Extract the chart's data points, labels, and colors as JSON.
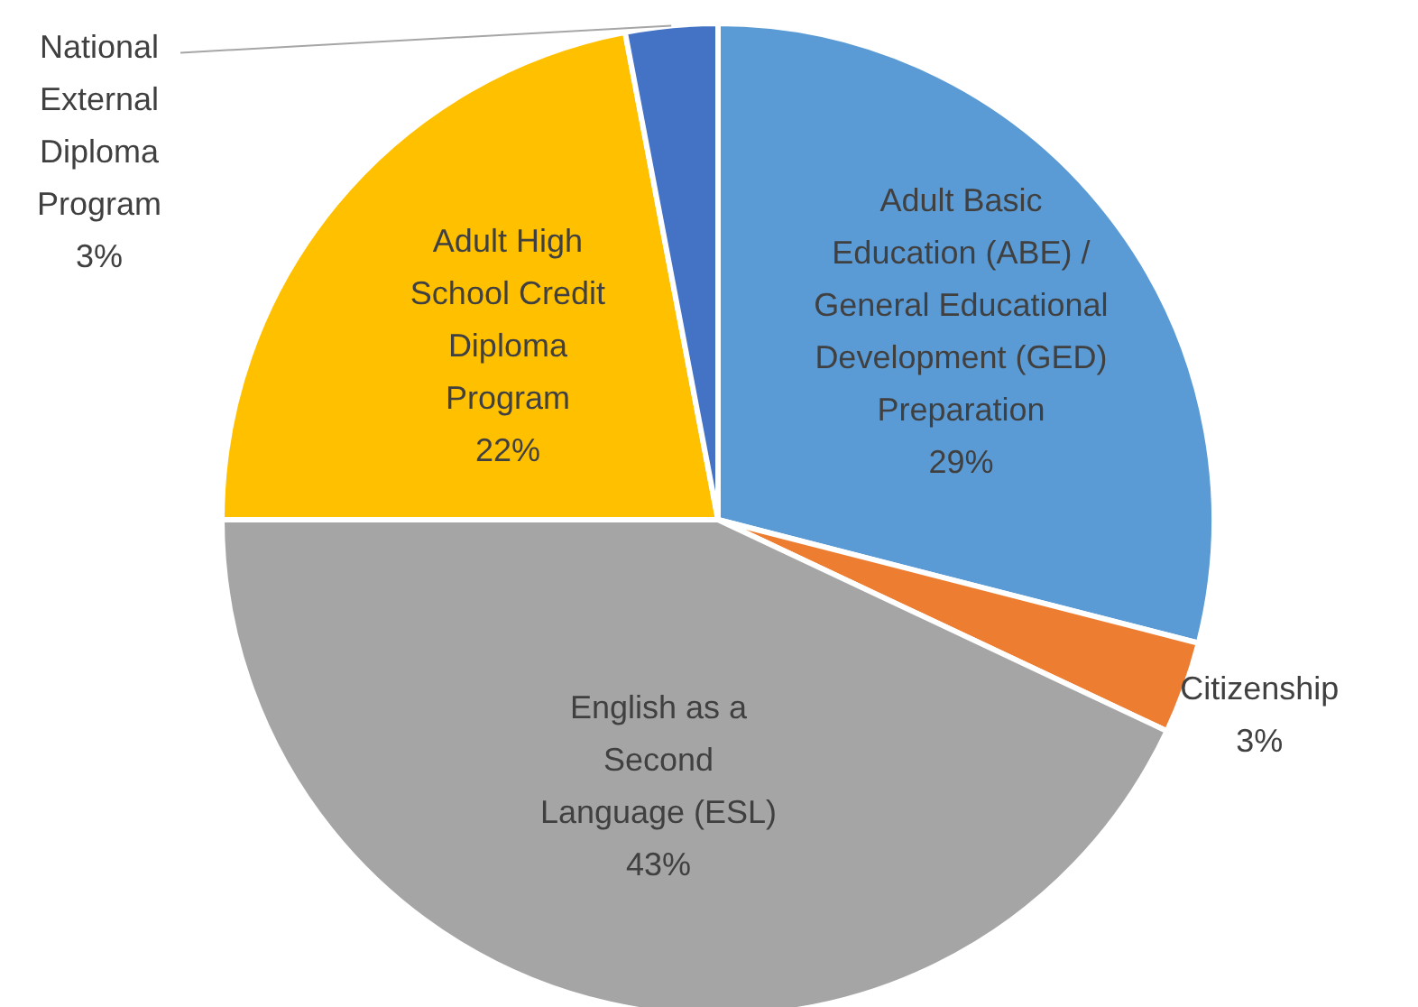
{
  "chart_data": {
    "type": "pie",
    "categories": [
      "Adult Basic Education (ABE) / General Educational Development (GED) Preparation",
      "Citizenship",
      "English as a Second Language (ESL)",
      "Adult High School Credit Diploma Program",
      "National External Diploma Program"
    ],
    "values": [
      29,
      3,
      43,
      22,
      3
    ],
    "value_labels": [
      "29%",
      "3%",
      "43%",
      "22%",
      "3%"
    ],
    "colors": [
      "#5b9bd5",
      "#ed7d31",
      "#a5a5a5",
      "#ffc000",
      "#4472c4"
    ],
    "legend": false
  }
}
